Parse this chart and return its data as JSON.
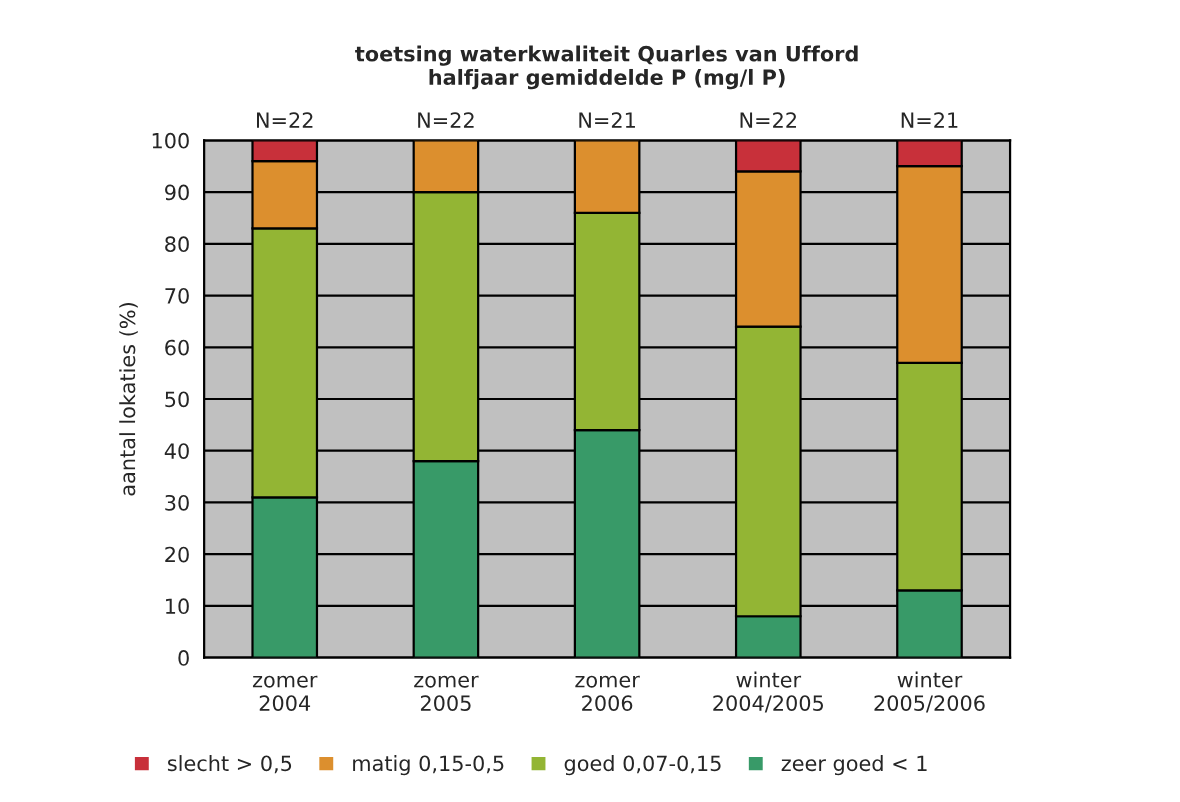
{
  "chart_data": {
    "type": "bar",
    "stacked": true,
    "title": "toetsing waterkwaliteit Quarles van Ufford\nhalfjaar gemiddelde P (mg/l P)",
    "ylabel": "aantal lokaties (%)",
    "categories": [
      "zomer\n2004",
      "zomer\n2005",
      "zomer\n2006",
      "winter\n2004/2005",
      "winter\n2005/2006"
    ],
    "series": [
      {
        "name": "zeer goed < 1",
        "color": "#389a68",
        "values": [
          31,
          38,
          44,
          8,
          13
        ]
      },
      {
        "name": "goed 0,07-0,15",
        "color": "#93b534",
        "values": [
          52,
          52,
          42,
          56,
          44
        ]
      },
      {
        "name": "matig 0,15-0,5",
        "color": "#dc8f2e",
        "values": [
          13,
          10,
          14,
          30,
          38
        ]
      },
      {
        "name": "slecht > 0,5",
        "color": "#c8303a",
        "values": [
          4,
          null,
          null,
          6,
          5
        ]
      }
    ],
    "annotations": [
      {
        "text": "N=22",
        "x": "zomer\n2004",
        "y": 100
      },
      {
        "text": "N=22",
        "x": "zomer\n2005",
        "y": 100
      },
      {
        "text": "N=21",
        "x": "zomer\n2006",
        "y": 100
      },
      {
        "text": "N=22",
        "x": "winter\n2004/2005",
        "y": 100
      },
      {
        "text": "N=21",
        "x": "winter\n2005/2006",
        "y": 100
      }
    ],
    "ylim": [
      0,
      100
    ],
    "yticks": [
      0,
      10,
      20,
      30,
      40,
      50,
      60,
      70,
      80,
      90,
      100
    ],
    "grid": "y",
    "legend": "bottom"
  }
}
